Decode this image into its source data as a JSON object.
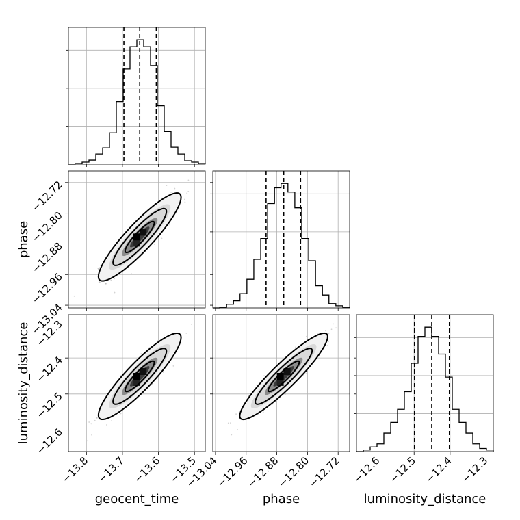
{
  "chart_data": {
    "type": "corner",
    "parameters": [
      {
        "name": "geocent_time",
        "label": "geocent_time",
        "range": [
          -13.85,
          -13.47
        ],
        "ticks": [
          -13.8,
          -13.7,
          -13.6,
          -13.5
        ],
        "tick_labels": [
          "−13.8",
          "−13.7",
          "−13.6",
          "−13.5"
        ],
        "quantiles": [
          -13.696,
          -13.652,
          -13.606
        ],
        "histogram": {
          "bin_edges": [
            -13.85,
            -13.831,
            -13.812,
            -13.793,
            -13.774,
            -13.755,
            -13.736,
            -13.717,
            -13.698,
            -13.679,
            -13.66,
            -13.641,
            -13.622,
            -13.603,
            -13.584,
            -13.565,
            -13.546,
            -13.527,
            -13.508,
            -13.489,
            -13.47
          ],
          "counts": [
            0,
            1,
            3,
            6,
            15,
            24,
            46,
            92,
            140,
            173,
            183,
            173,
            145,
            86,
            48,
            25,
            15,
            5,
            3,
            1
          ]
        }
      },
      {
        "name": "phase",
        "label": "phase",
        "range": [
          -13.047,
          -12.69
        ],
        "ticks": [
          -13.04,
          -12.96,
          -12.88,
          -12.8,
          -12.72
        ],
        "tick_labels": [
          "−13.04",
          "−12.96",
          "−12.88",
          "−12.80",
          "−12.72"
        ],
        "quantiles": [
          -12.908,
          -12.862,
          -12.818
        ],
        "histogram": {
          "bin_edges": [
            -13.047,
            -13.029,
            -13.011,
            -12.993,
            -12.976,
            -12.958,
            -12.94,
            -12.922,
            -12.904,
            -12.886,
            -12.869,
            -12.851,
            -12.833,
            -12.815,
            -12.797,
            -12.779,
            -12.761,
            -12.744,
            -12.726,
            -12.708,
            -12.69
          ],
          "counts": [
            0,
            1,
            5,
            10,
            20,
            40,
            68,
            97,
            146,
            168,
            174,
            162,
            140,
            97,
            66,
            31,
            18,
            6,
            3,
            1
          ]
        }
      },
      {
        "name": "luminosity_distance",
        "label": "luminosity_distance",
        "range": [
          -12.66,
          -12.28
        ],
        "ticks": [
          -12.6,
          -12.5,
          -12.4,
          -12.3
        ],
        "tick_labels": [
          "−12.6",
          "−12.5",
          "−12.4",
          "−12.3"
        ],
        "quantiles": [
          -12.499,
          -12.451,
          -12.402
        ],
        "histogram": {
          "bin_edges": [
            -12.66,
            -12.641,
            -12.622,
            -12.603,
            -12.584,
            -12.565,
            -12.546,
            -12.527,
            -12.508,
            -12.489,
            -12.47,
            -12.451,
            -12.432,
            -12.413,
            -12.394,
            -12.375,
            -12.356,
            -12.337,
            -12.318,
            -12.299,
            -12.28
          ],
          "counts": [
            0,
            2,
            6,
            10,
            24,
            38,
            55,
            78,
            115,
            150,
            162,
            150,
            127,
            97,
            55,
            38,
            24,
            10,
            4,
            2
          ]
        }
      }
    ],
    "pairs": [
      {
        "x": "geocent_time",
        "y": "phase",
        "mean": [
          -13.652,
          -12.862
        ],
        "sd": [
          0.045,
          0.045
        ],
        "correlation": 0.9
      },
      {
        "x": "geocent_time",
        "y": "luminosity_distance",
        "mean": [
          -13.652,
          -12.451
        ],
        "sd": [
          0.045,
          0.047
        ],
        "correlation": 0.9
      },
      {
        "x": "phase",
        "y": "luminosity_distance",
        "mean": [
          -12.862,
          -12.451
        ],
        "sd": [
          0.045,
          0.047
        ],
        "correlation": 0.92
      }
    ],
    "contour_levels_sigma": [
      1,
      2,
      3
    ],
    "grid": true
  }
}
